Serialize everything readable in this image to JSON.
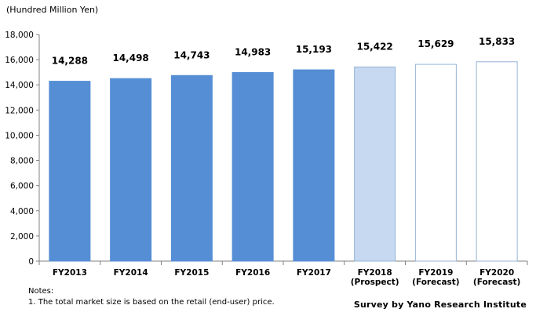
{
  "unit_label": "(Hundred Million Yen)",
  "notes": {
    "heading": "Notes:",
    "line1": "1. The total market size is based on the retail (end-user) price."
  },
  "source": "Survey by Yano Research Institute",
  "colors": {
    "actual": "#558ed5",
    "prospect": "#c6d9f1",
    "forecast": "#ffffff",
    "bar_border": "#95b3d7"
  },
  "chart_data": {
    "type": "bar",
    "title": "",
    "xlabel": "",
    "ylabel": "(Hundred Million Yen)",
    "ylim": [
      0,
      18000
    ],
    "yticks": [
      0,
      2000,
      4000,
      6000,
      8000,
      10000,
      12000,
      14000,
      16000,
      18000
    ],
    "ytick_labels": [
      "0",
      "2,000",
      "4,000",
      "6,000",
      "8,000",
      "10,000",
      "12,000",
      "14,000",
      "16,000",
      "18,000"
    ],
    "grid": false,
    "categories": [
      {
        "line1": "FY2013",
        "line2": ""
      },
      {
        "line1": "FY2014",
        "line2": ""
      },
      {
        "line1": "FY2015",
        "line2": ""
      },
      {
        "line1": "FY2016",
        "line2": ""
      },
      {
        "line1": "FY2017",
        "line2": ""
      },
      {
        "line1": "FY2018",
        "line2": "(Prospect)"
      },
      {
        "line1": "FY2019",
        "line2": "(Forecast)"
      },
      {
        "line1": "FY2020",
        "line2": "(Forecast)"
      }
    ],
    "values": [
      14288,
      14498,
      14743,
      14983,
      15193,
      15422,
      15629,
      15833
    ],
    "value_labels": [
      "14,288",
      "14,498",
      "14,743",
      "14,983",
      "15,193",
      "15,422",
      "15,629",
      "15,833"
    ],
    "bar_kind": [
      "actual",
      "actual",
      "actual",
      "actual",
      "actual",
      "prospect",
      "forecast",
      "forecast"
    ]
  }
}
